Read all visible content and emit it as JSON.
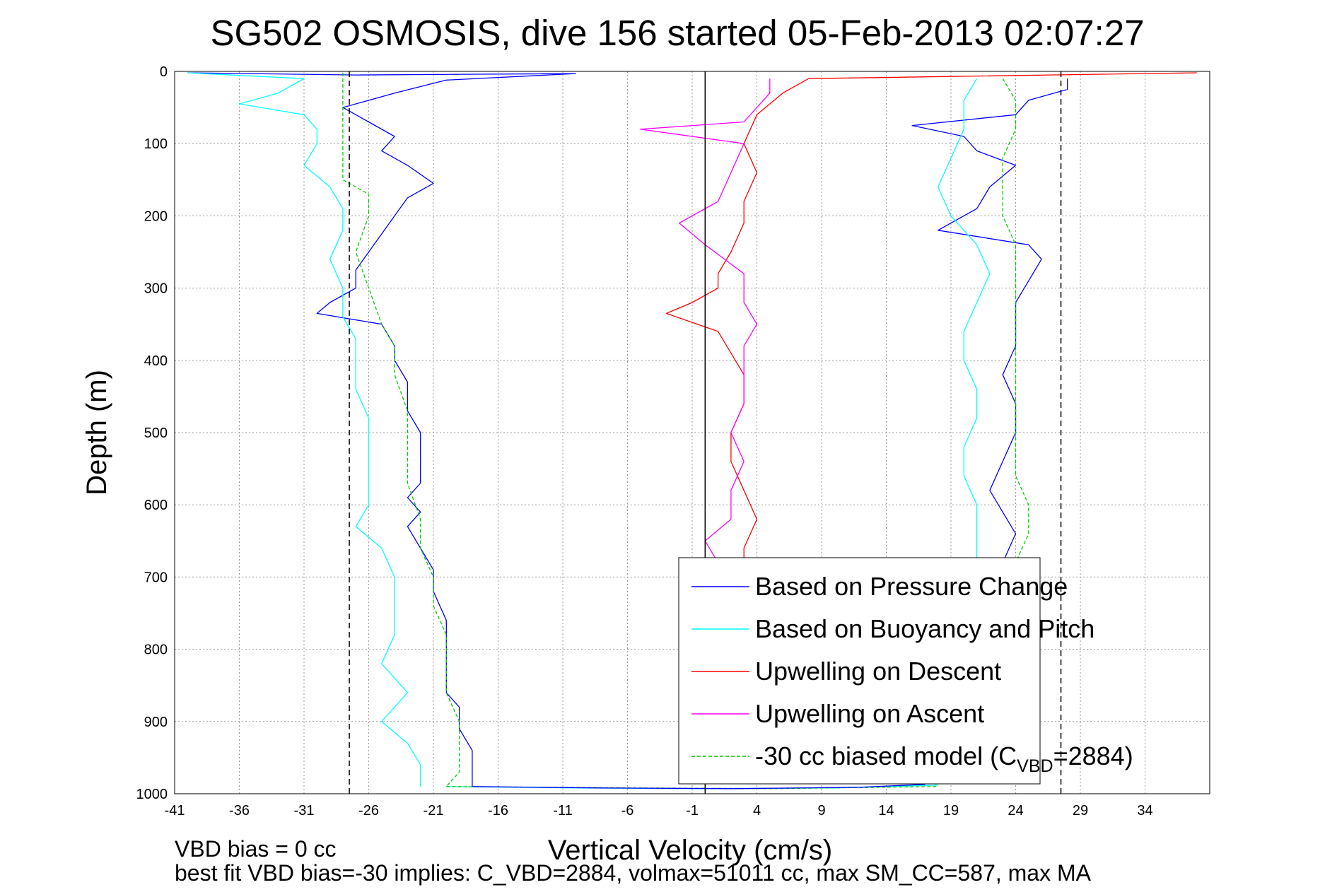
{
  "chart_data": {
    "type": "line",
    "title": "SG502 OSMOSIS, dive 156 started 05-Feb-2013 02:07:27",
    "xlabel": "Vertical Velocity (cm/s)",
    "ylabel": "Depth (m)",
    "xlim": [
      -41,
      39
    ],
    "ylim": [
      1000,
      0
    ],
    "y_reversed": true,
    "grid": true,
    "xticks": [
      -41,
      -36,
      -31,
      -26,
      -21,
      -16,
      -11,
      -6,
      -1,
      4,
      9,
      14,
      19,
      24,
      29,
      34
    ],
    "yticks": [
      0,
      100,
      200,
      300,
      400,
      500,
      600,
      700,
      800,
      900,
      1000
    ],
    "reference_lines": [
      {
        "x": -27.5,
        "style": "dashed",
        "color": "#000000"
      },
      {
        "x": 0,
        "style": "solid",
        "color": "#000000"
      },
      {
        "x": 27.5,
        "style": "dashed",
        "color": "#000000"
      }
    ],
    "legend": {
      "location": "bottom-right",
      "entries": [
        {
          "label": "Based on Pressure Change",
          "color": "#0000ff",
          "style": "solid"
        },
        {
          "label": "Based on Buoyancy and Pitch",
          "color": "#00ffff",
          "style": "solid"
        },
        {
          "label": "Upwelling on Descent",
          "color": "#ff0000",
          "style": "solid"
        },
        {
          "label": "Upwelling on Ascent",
          "color": "#ff00ff",
          "style": "solid"
        },
        {
          "label_main": "-30 cc biased model (C",
          "label_sub": "VBD",
          "label_end": "=2884)",
          "color": "#00cc00",
          "style": "dashed"
        }
      ]
    },
    "series": [
      {
        "color": "#0000ff",
        "points": [
          [
            -40,
            2
          ],
          [
            -27,
            5
          ],
          [
            -10,
            3
          ],
          [
            -20,
            12
          ],
          [
            -24,
            30
          ],
          [
            -28,
            50
          ],
          [
            -26,
            70
          ],
          [
            -24,
            90
          ],
          [
            -25,
            110
          ],
          [
            -23,
            130
          ],
          [
            -21,
            155
          ],
          [
            -23,
            175
          ],
          [
            -24,
            200
          ],
          [
            -25,
            225
          ],
          [
            -26,
            250
          ],
          [
            -27,
            275
          ],
          [
            -27,
            300
          ],
          [
            -29,
            320
          ],
          [
            -30,
            335
          ],
          [
            -25,
            350
          ],
          [
            -24,
            380
          ],
          [
            -24,
            400
          ],
          [
            -23,
            430
          ],
          [
            -23,
            470
          ],
          [
            -22,
            500
          ],
          [
            -22,
            540
          ],
          [
            -22,
            570
          ],
          [
            -23,
            590
          ],
          [
            -22,
            610
          ],
          [
            -23,
            630
          ],
          [
            -22,
            660
          ],
          [
            -21,
            690
          ],
          [
            -21,
            720
          ],
          [
            -20,
            760
          ],
          [
            -20,
            800
          ],
          [
            -20,
            830
          ],
          [
            -20,
            860
          ],
          [
            -19,
            880
          ],
          [
            -19,
            910
          ],
          [
            -18,
            940
          ],
          [
            -18,
            970
          ],
          [
            -18,
            990
          ]
        ]
      },
      {
        "color": "#00ffff",
        "points": [
          [
            -40,
            2
          ],
          [
            -31,
            10
          ],
          [
            -33,
            30
          ],
          [
            -36,
            45
          ],
          [
            -31,
            60
          ],
          [
            -30,
            80
          ],
          [
            -30,
            100
          ],
          [
            -31,
            130
          ],
          [
            -29,
            160
          ],
          [
            -28,
            190
          ],
          [
            -28,
            220
          ],
          [
            -29,
            260
          ],
          [
            -28,
            300
          ],
          [
            -28,
            340
          ],
          [
            -27,
            370
          ],
          [
            -27,
            400
          ],
          [
            -27,
            440
          ],
          [
            -26,
            480
          ],
          [
            -26,
            520
          ],
          [
            -26,
            560
          ],
          [
            -26,
            600
          ],
          [
            -27,
            630
          ],
          [
            -25,
            660
          ],
          [
            -24,
            700
          ],
          [
            -24,
            740
          ],
          [
            -24,
            780
          ],
          [
            -25,
            820
          ],
          [
            -23,
            860
          ],
          [
            -25,
            900
          ],
          [
            -23,
            930
          ],
          [
            -22,
            960
          ],
          [
            -22,
            990
          ]
        ]
      },
      {
        "color": "#00cc00",
        "dashed": true,
        "points": [
          [
            -28,
            2
          ],
          [
            -28,
            50
          ],
          [
            -28,
            100
          ],
          [
            -28,
            150
          ],
          [
            -26,
            170
          ],
          [
            -26,
            200
          ],
          [
            -27,
            250
          ],
          [
            -26,
            300
          ],
          [
            -25,
            350
          ],
          [
            -24,
            380
          ],
          [
            -24,
            420
          ],
          [
            -23,
            470
          ],
          [
            -23,
            520
          ],
          [
            -23,
            570
          ],
          [
            -22,
            620
          ],
          [
            -22,
            660
          ],
          [
            -21,
            700
          ],
          [
            -21,
            740
          ],
          [
            -20,
            780
          ],
          [
            -20,
            820
          ],
          [
            -20,
            860
          ],
          [
            -19,
            900
          ],
          [
            -19,
            940
          ],
          [
            -19,
            970
          ],
          [
            -20,
            990
          ]
        ]
      },
      {
        "color": "#ff0000",
        "points": [
          [
            38,
            2
          ],
          [
            8,
            10
          ],
          [
            6,
            30
          ],
          [
            4,
            60
          ],
          [
            3,
            100
          ],
          [
            4,
            140
          ],
          [
            3,
            180
          ],
          [
            3,
            210
          ],
          [
            2,
            250
          ],
          [
            1,
            280
          ],
          [
            1,
            300
          ],
          [
            -1,
            320
          ],
          [
            -3,
            335
          ],
          [
            1,
            360
          ],
          [
            2,
            390
          ],
          [
            3,
            420
          ],
          [
            3,
            460
          ],
          [
            2,
            500
          ],
          [
            2,
            540
          ],
          [
            3,
            580
          ],
          [
            4,
            620
          ],
          [
            3,
            660
          ],
          [
            3,
            680
          ]
        ]
      },
      {
        "color": "#ff00ff",
        "points": [
          [
            5,
            10
          ],
          [
            5,
            30
          ],
          [
            4,
            50
          ],
          [
            3,
            70
          ],
          [
            -5,
            80
          ],
          [
            3,
            100
          ],
          [
            2,
            140
          ],
          [
            1,
            180
          ],
          [
            -2,
            210
          ],
          [
            0,
            240
          ],
          [
            3,
            280
          ],
          [
            3,
            320
          ],
          [
            4,
            350
          ],
          [
            3,
            380
          ],
          [
            3,
            420
          ],
          [
            3,
            460
          ],
          [
            2,
            500
          ],
          [
            3,
            540
          ],
          [
            2,
            580
          ],
          [
            2,
            620
          ],
          [
            0,
            650
          ],
          [
            1,
            680
          ]
        ]
      },
      {
        "color": "#0000ff",
        "points": [
          [
            28,
            10
          ],
          [
            28,
            25
          ],
          [
            25,
            40
          ],
          [
            24,
            60
          ],
          [
            16,
            75
          ],
          [
            20,
            90
          ],
          [
            21,
            110
          ],
          [
            24,
            130
          ],
          [
            22,
            160
          ],
          [
            21,
            190
          ],
          [
            19,
            210
          ],
          [
            18,
            220
          ],
          [
            25,
            240
          ],
          [
            26,
            260
          ],
          [
            25,
            290
          ],
          [
            24,
            320
          ],
          [
            24,
            350
          ],
          [
            24,
            380
          ],
          [
            23,
            420
          ],
          [
            24,
            460
          ],
          [
            24,
            500
          ],
          [
            23,
            540
          ],
          [
            22,
            580
          ],
          [
            23,
            610
          ],
          [
            24,
            640
          ],
          [
            23,
            680
          ]
        ]
      },
      {
        "color": "#00ffff",
        "points": [
          [
            21,
            10
          ],
          [
            20,
            40
          ],
          [
            20,
            80
          ],
          [
            19,
            120
          ],
          [
            18,
            160
          ],
          [
            19,
            200
          ],
          [
            21,
            240
          ],
          [
            22,
            280
          ],
          [
            21,
            320
          ],
          [
            20,
            360
          ],
          [
            20,
            400
          ],
          [
            21,
            440
          ],
          [
            21,
            480
          ],
          [
            20,
            520
          ],
          [
            20,
            560
          ],
          [
            21,
            600
          ],
          [
            21,
            640
          ],
          [
            21,
            680
          ]
        ]
      },
      {
        "color": "#00cc00",
        "dashed": true,
        "points": [
          [
            23,
            10
          ],
          [
            24,
            40
          ],
          [
            24,
            80
          ],
          [
            23,
            120
          ],
          [
            23,
            160
          ],
          [
            23,
            200
          ],
          [
            24,
            240
          ],
          [
            24,
            280
          ],
          [
            24,
            320
          ],
          [
            24,
            360
          ],
          [
            24,
            400
          ],
          [
            24,
            440
          ],
          [
            24,
            480
          ],
          [
            24,
            520
          ],
          [
            24,
            560
          ],
          [
            25,
            600
          ],
          [
            25,
            640
          ],
          [
            24,
            680
          ]
        ]
      },
      {
        "color": "#00ffff",
        "points": [
          [
            -20,
            990
          ],
          [
            -10,
            992
          ],
          [
            0,
            993
          ],
          [
            10,
            992
          ],
          [
            18,
            988
          ]
        ]
      },
      {
        "color": "#00cc00",
        "dashed": true,
        "points": [
          [
            -20,
            990
          ],
          [
            -5,
            992
          ],
          [
            5,
            993
          ],
          [
            18,
            990
          ]
        ]
      },
      {
        "color": "#0000ff",
        "points": [
          [
            -18,
            990
          ],
          [
            -8,
            992
          ],
          [
            2,
            993
          ],
          [
            12,
            991
          ],
          [
            17,
            987
          ]
        ]
      }
    ]
  },
  "footer": {
    "line1": "VBD bias = 0 cc",
    "line2": "best fit VBD bias=-30 implies: C_VBD=2884, volmax=51011 cc, max SM_CC=587, max MA"
  }
}
